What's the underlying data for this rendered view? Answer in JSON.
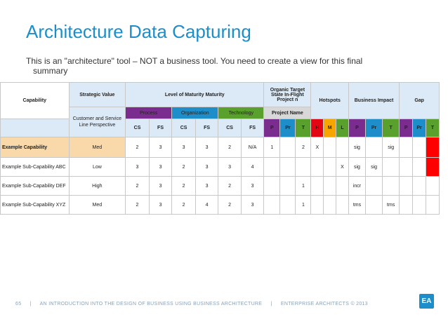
{
  "title": "Architecture Data Capturing",
  "subtitle_line1": "This is an \"architecture\" tool – NOT a business tool. You need to create a view for this final",
  "subtitle_line2": "summary",
  "header": {
    "capability": "Capability",
    "strategic_value": "Strategic Value",
    "level_of_maturity": "Level of Maturity Maturity",
    "organic_target": "Organic Target State In-Flight Project n",
    "hotspots": "Hotspots",
    "business_impact": "Business Impact",
    "gap": "Gap",
    "customer_sl": "Customer and Service Line Perspective",
    "process": "Process",
    "organization": "Organization",
    "technology": "Technology",
    "project_name": "Project Name",
    "cs": "CS",
    "fs": "FS",
    "p": "P",
    "pr": "Pr",
    "t": "T",
    "h": "H",
    "m": "M",
    "l": "L"
  },
  "rows": [
    {
      "label": "Example Capability",
      "sv": "Med",
      "m": [
        "2",
        "3",
        "3",
        "3",
        "2",
        "N/A"
      ],
      "proj": [
        "1",
        "",
        "2"
      ],
      "hot": [
        "X",
        "",
        ""
      ],
      "bi": [
        "sig",
        "",
        "sig"
      ]
    },
    {
      "label": "Example Sub-Capability ABC",
      "sv": "Low",
      "m": [
        "3",
        "3",
        "2",
        "3",
        "3",
        "4"
      ],
      "proj": [
        "",
        "",
        ""
      ],
      "hot": [
        "",
        "",
        "X"
      ],
      "bi": [
        "sig",
        "sig",
        ""
      ]
    },
    {
      "label": "Example Sub-Capability DEF",
      "sv": "High",
      "m": [
        "2",
        "3",
        "2",
        "3",
        "2",
        "3"
      ],
      "proj": [
        "",
        "",
        "1"
      ],
      "hot": [
        "",
        "",
        ""
      ],
      "bi": [
        "incr",
        "",
        ""
      ]
    },
    {
      "label": "Example Sub-Capability XYZ",
      "sv": "Med",
      "m": [
        "2",
        "3",
        "2",
        "4",
        "2",
        "3"
      ],
      "proj": [
        "",
        "",
        "1"
      ],
      "hot": [
        "",
        "",
        ""
      ],
      "bi": [
        "tms",
        "",
        "tms"
      ]
    }
  ],
  "footer": {
    "page": "65",
    "sep": "|",
    "text1": "AN INTRODUCTION INTO THE DESIGN OF BUSINESS USING BUSINESS ARCHITECTURE",
    "text2": "ENTERPRISE ARCHITECTS © 2013",
    "logo": "EA"
  },
  "colors": {
    "accent": "#1d8ec9",
    "purple": "#7b2c8f",
    "green": "#5aa02c",
    "red": "#e30613",
    "orange": "#f7a600",
    "highlight": "#f9d8a9"
  }
}
